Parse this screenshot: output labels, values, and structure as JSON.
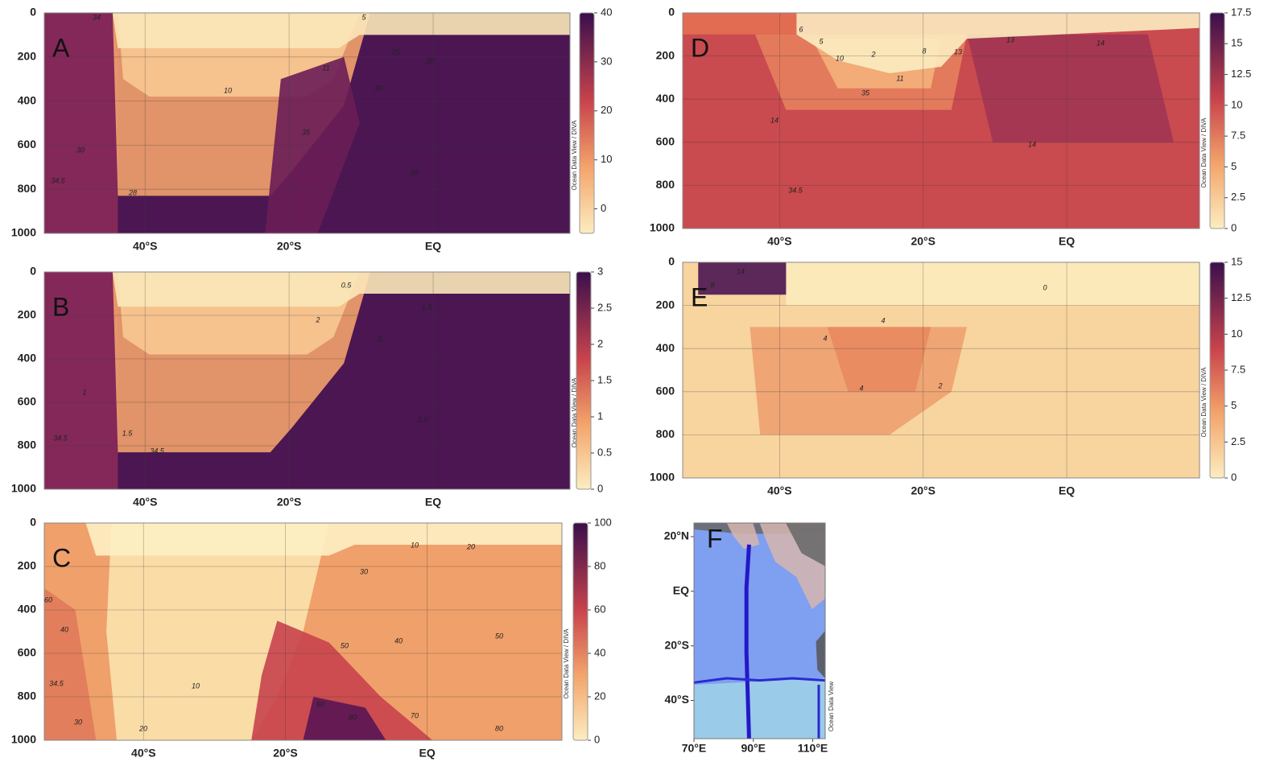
{
  "chart_data": [
    {
      "type": "section",
      "label": "A",
      "ylim": [
        0,
        1000
      ],
      "yticks": [
        0,
        200,
        400,
        600,
        800,
        1000
      ],
      "xlim": [
        -54,
        19
      ],
      "xticks": [
        {
          "value": -40,
          "label": "40°S"
        },
        {
          "value": -20,
          "label": "20°S"
        },
        {
          "value": 0,
          "label": "EQ"
        }
      ],
      "grid": true,
      "colorbar": {
        "lim": [
          -5,
          40
        ],
        "ticks": [
          0,
          10,
          20,
          30,
          40
        ]
      },
      "credit": "Ocean Data View / DIVA",
      "contour_labels": [
        34,
        5,
        10,
        11,
        25,
        20,
        30,
        30,
        34.5,
        28,
        35,
        30
      ]
    },
    {
      "type": "section",
      "label": "B",
      "ylim": [
        0,
        1000
      ],
      "yticks": [
        0,
        200,
        400,
        600,
        800,
        1000
      ],
      "xlim": [
        -54,
        19
      ],
      "xticks": [
        {
          "value": -40,
          "label": "40°S"
        },
        {
          "value": -20,
          "label": "20°S"
        },
        {
          "value": 0,
          "label": "EQ"
        }
      ],
      "grid": true,
      "colorbar": {
        "lim": [
          0,
          3
        ],
        "ticks": [
          0,
          0.5,
          1,
          1.5,
          2,
          2.5,
          3
        ]
      },
      "credit": "Ocean Data View / DIVA",
      "contour_labels": [
        0.5,
        1.5,
        2,
        2,
        1,
        1.5,
        34.5,
        34.5,
        2.5
      ]
    },
    {
      "type": "section",
      "label": "C",
      "ylim": [
        0,
        1000
      ],
      "yticks": [
        0,
        200,
        400,
        600,
        800,
        1000
      ],
      "xlim": [
        -54,
        19
      ],
      "xticks": [
        {
          "value": -40,
          "label": "40°S"
        },
        {
          "value": -20,
          "label": "20°S"
        },
        {
          "value": 0,
          "label": "EQ"
        }
      ],
      "grid": true,
      "colorbar": {
        "lim": [
          0,
          100
        ],
        "ticks": [
          0,
          20,
          40,
          60,
          80,
          100
        ]
      },
      "credit": "Ocean Data View / DIVA",
      "contour_labels": [
        10,
        20,
        30,
        60,
        40,
        50,
        40,
        50,
        10,
        60,
        80,
        70,
        80,
        30,
        20,
        34.5
      ]
    },
    {
      "type": "section",
      "label": "D",
      "ylim": [
        0,
        1000
      ],
      "yticks": [
        0,
        200,
        400,
        600,
        800,
        1000
      ],
      "xlim": [
        -53.5,
        18.5
      ],
      "xticks": [
        {
          "value": -40,
          "label": "40°S"
        },
        {
          "value": -20,
          "label": "20°S"
        },
        {
          "value": 0,
          "label": "EQ"
        }
      ],
      "grid": true,
      "colorbar": {
        "lim": [
          0,
          17.5
        ],
        "ticks": [
          0,
          2.5,
          5,
          7.5,
          10,
          12.5,
          15,
          17.5
        ]
      },
      "credit": "Ocean Data View / DIVA",
      "contour_labels": [
        6,
        5,
        10,
        2,
        11,
        14,
        14,
        34.5,
        35,
        13,
        13,
        14,
        8
      ]
    },
    {
      "type": "section",
      "label": "E",
      "ylim": [
        0,
        1000
      ],
      "yticks": [
        0,
        200,
        400,
        600,
        800,
        1000
      ],
      "xlim": [
        -53.5,
        18.5
      ],
      "xticks": [
        {
          "value": -40,
          "label": "40°S"
        },
        {
          "value": -20,
          "label": "20°S"
        },
        {
          "value": 0,
          "label": "EQ"
        }
      ],
      "grid": true,
      "colorbar": {
        "lim": [
          0,
          15
        ],
        "ticks": [
          0,
          2.5,
          5,
          7.5,
          10,
          12.5,
          15
        ]
      },
      "credit": "Ocean Data View / DIVA",
      "contour_labels": [
        14,
        0,
        4,
        4,
        4,
        2,
        8
      ]
    },
    {
      "type": "map",
      "label": "F",
      "xlim": [
        70,
        114.2
      ],
      "ylim": [
        -54,
        25
      ],
      "xticks": [
        {
          "value": 70,
          "label": "70°E"
        },
        {
          "value": 90,
          "label": "90°E"
        },
        {
          "value": 110,
          "label": "110°E"
        }
      ],
      "yticks": [
        {
          "value": 20,
          "label": "20°N"
        },
        {
          "value": 0,
          "label": "EQ"
        },
        {
          "value": -20,
          "label": "20°S"
        },
        {
          "value": -40,
          "label": "40°S"
        }
      ],
      "credit": "Ocean Data View"
    }
  ]
}
